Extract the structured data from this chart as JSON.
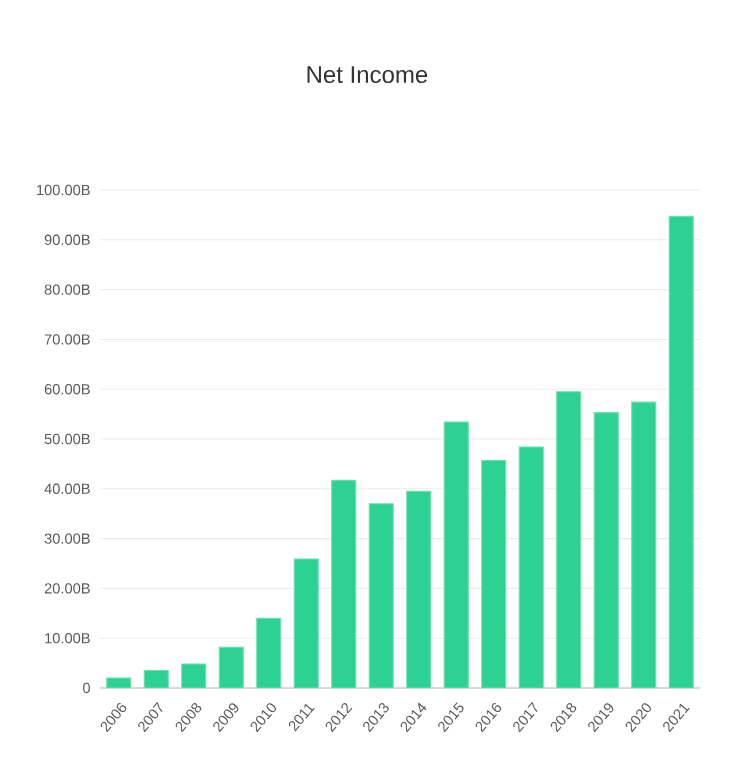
{
  "chart_data": {
    "type": "bar",
    "title": "Net Income",
    "categories": [
      "2006",
      "2007",
      "2008",
      "2009",
      "2010",
      "2011",
      "2012",
      "2013",
      "2014",
      "2015",
      "2016",
      "2017",
      "2018",
      "2019",
      "2020",
      "2021"
    ],
    "values": [
      2.0,
      3.5,
      4.8,
      8.2,
      14.0,
      25.9,
      41.7,
      37.0,
      39.5,
      53.4,
      45.7,
      48.4,
      59.5,
      55.3,
      57.4,
      94.7
    ],
    "color": "#2dd293",
    "ylim": [
      0,
      100
    ],
    "yticks": [
      0,
      {
        "value": 10,
        "label": "10.00B"
      },
      {
        "value": 20,
        "label": "20.00B"
      },
      {
        "value": 30,
        "label": "30.00B"
      },
      {
        "value": 40,
        "label": "40.00B"
      },
      {
        "value": 50,
        "label": "50.00B"
      },
      {
        "value": 60,
        "label": "60.00B"
      },
      {
        "value": 70,
        "label": "70.00B"
      },
      {
        "value": 80,
        "label": "80.00B"
      },
      {
        "value": 90,
        "label": "90.00B"
      },
      {
        "value": 100,
        "label": "100.00B"
      }
    ],
    "grid": "y"
  }
}
